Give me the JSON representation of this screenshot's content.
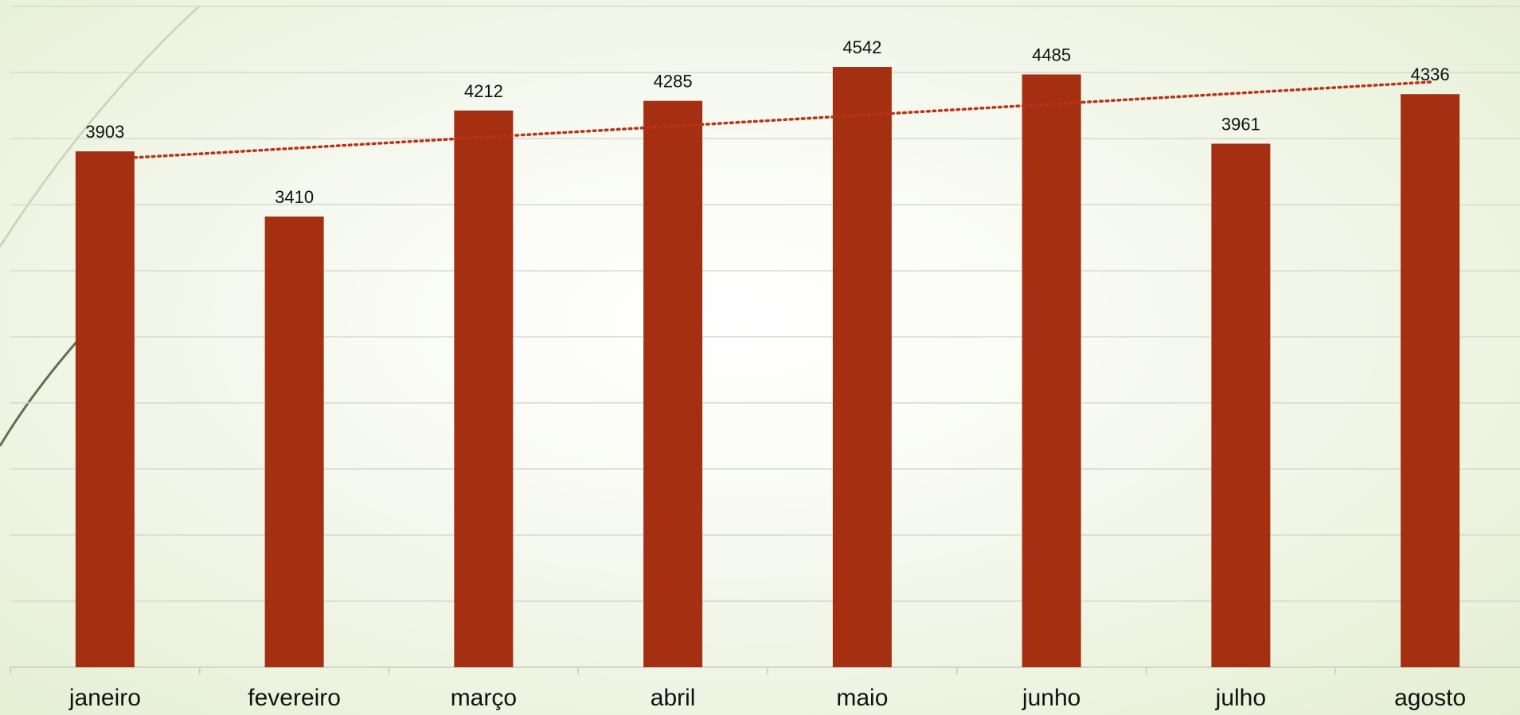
{
  "chart_data": {
    "type": "bar",
    "title": "",
    "xlabel": "",
    "ylabel": "",
    "categories": [
      "janeiro",
      "fevereiro",
      "março",
      "abril",
      "maio",
      "junho",
      "julho",
      "agosto"
    ],
    "series": [
      {
        "values": [
          3903,
          3410,
          4212,
          4285,
          4542,
          4485,
          3961,
          4336
        ]
      }
    ],
    "ylim": [
      0,
      5000
    ],
    "y_gridline_step": 500,
    "y_tick_labels_visible": false,
    "data_labels": true,
    "grid": true,
    "legend": "none",
    "trendline": {
      "type": "linear",
      "style": "dotted"
    },
    "colors": {
      "bar": "#a52f11",
      "trendline": "#b83318",
      "gridline": "#d6d9d2"
    }
  }
}
